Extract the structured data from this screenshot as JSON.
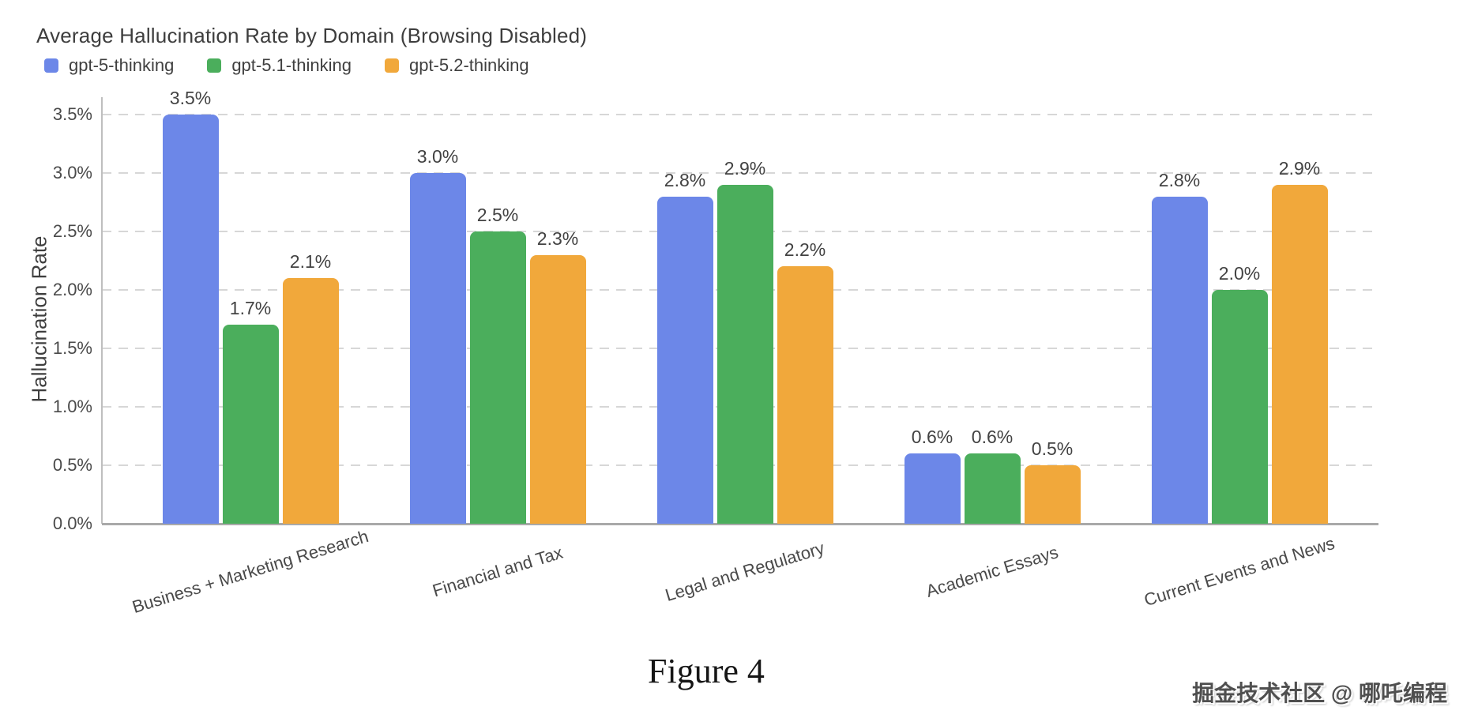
{
  "chart_data": {
    "type": "bar",
    "title": "Average Hallucination Rate by Domain (Browsing Disabled)",
    "ylabel": "Hallucination Rate",
    "xlabel": "",
    "categories": [
      "Business + Marketing Research",
      "Financial and Tax",
      "Legal and Regulatory",
      "Academic Essays",
      "Current Events and News"
    ],
    "series": [
      {
        "name": "gpt-5-thinking",
        "color": "#6c87e8",
        "values": [
          3.5,
          3.0,
          2.8,
          0.6,
          2.8
        ],
        "labels": [
          "3.5%",
          "3.0%",
          "2.8%",
          "0.6%",
          "2.8%"
        ]
      },
      {
        "name": "gpt-5.1-thinking",
        "color": "#4bae5c",
        "values": [
          1.7,
          2.5,
          2.9,
          0.6,
          2.0
        ],
        "labels": [
          "1.7%",
          "2.5%",
          "2.9%",
          "0.6%",
          "2.0%"
        ]
      },
      {
        "name": "gpt-5.2-thinking",
        "color": "#f1a83b",
        "values": [
          2.1,
          2.3,
          2.2,
          0.5,
          2.9
        ],
        "labels": [
          "2.1%",
          "2.3%",
          "2.2%",
          "0.5%",
          "2.9%"
        ]
      }
    ],
    "yticks": [
      "0.0%",
      "0.5%",
      "1.0%",
      "1.5%",
      "2.0%",
      "2.5%",
      "3.0%",
      "3.5%"
    ],
    "ylim": [
      0,
      3.5
    ],
    "grid": "horizontal-dashed",
    "legend_position": "top-left"
  },
  "caption": "Figure 4",
  "watermark": "掘金技术社区 @ 哪吒编程"
}
